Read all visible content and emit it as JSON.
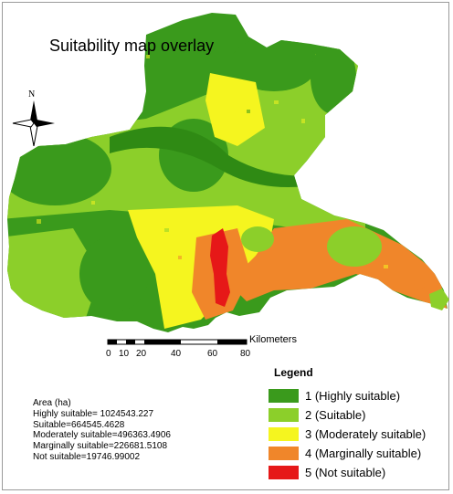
{
  "title": "Suitability map overlay",
  "north_label": "N",
  "scale": {
    "unit": "Kilometers",
    "ticks": [
      "0",
      "10",
      "20",
      "40",
      "60",
      "80"
    ]
  },
  "area": {
    "heading": "Area (ha)",
    "lines": [
      "Highly suitable= 1024543.227",
      "Suitable=664545.4628",
      "Moderately suitable=496363.4906",
      "Marginally suitable=226681.5108",
      "Not suitable=19746.99002"
    ]
  },
  "legend": {
    "title": "Legend",
    "items": [
      {
        "label": "1 (Highly suitable)",
        "color": "#3a9a1c"
      },
      {
        "label": "2 (Suitable)",
        "color": "#8ccf2a"
      },
      {
        "label": "3 (Moderately suitable)",
        "color": "#f5f51f"
      },
      {
        "label": "4 (Marginally suitable)",
        "color": "#f0862a"
      },
      {
        "label": "5 (Not suitable)",
        "color": "#e61818"
      }
    ]
  }
}
